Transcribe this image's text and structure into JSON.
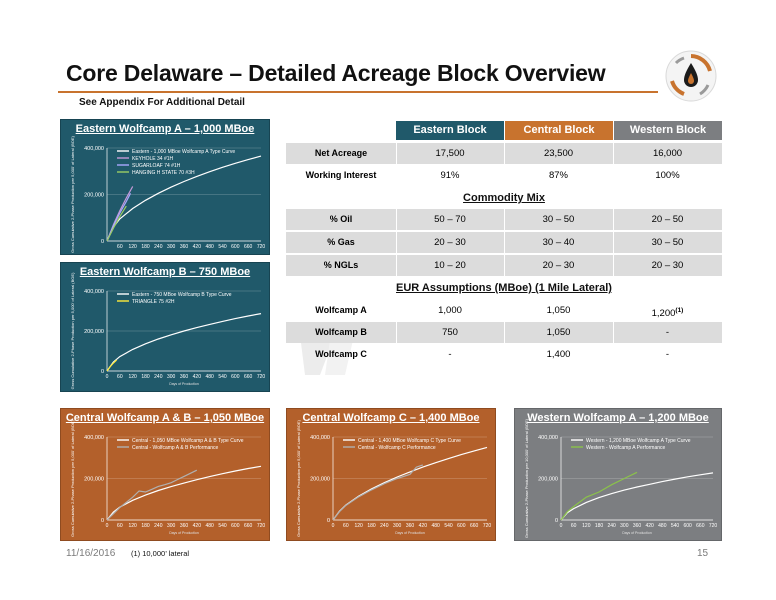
{
  "header": {
    "title": "Core Delaware – Detailed Acreage Block Overview",
    "subtitle": "See Appendix For Additional Detail"
  },
  "footer": {
    "date": "11/16/2016",
    "footnote": "(1) 10,000’ lateral",
    "page": "15"
  },
  "colors": {
    "accent": "#c8732e",
    "blue_panel": "#20596a",
    "orange_panel": "#b3602b",
    "grey_panel": "#7c7e81"
  },
  "table": {
    "headers": [
      {
        "label": "Eastern Block",
        "color": "#20596a"
      },
      {
        "label": "Central Block",
        "color": "#c8732e"
      },
      {
        "label": "Western Block",
        "color": "#7c7e81"
      }
    ],
    "rows": [
      {
        "label": "Net Acreage",
        "values": [
          "17,500",
          "23,500",
          "16,000"
        ]
      },
      {
        "label": "Working Interest",
        "values": [
          "91%",
          "87%",
          "100%"
        ]
      }
    ],
    "commodity_title": "Commodity Mix",
    "commodity_rows": [
      {
        "label": "% Oil",
        "values": [
          "50 – 70",
          "30 – 50",
          "20 – 50"
        ]
      },
      {
        "label": "% Gas",
        "values": [
          "20 – 30",
          "30 – 40",
          "30 – 50"
        ]
      },
      {
        "label": "% NGLs",
        "values": [
          "10 – 20",
          "20 – 30",
          "20 – 30"
        ]
      }
    ],
    "eur_title": "EUR Assumptions (MBoe) (1 Mile Lateral)",
    "eur_rows": [
      {
        "label": "Wolfcamp A",
        "values": [
          "1,000",
          "1,050",
          "1,200"
        ],
        "notes": [
          "",
          "",
          "(1)"
        ]
      },
      {
        "label": "Wolfcamp B",
        "values": [
          "750",
          "1,050",
          "-"
        ],
        "notes": [
          "",
          "",
          ""
        ]
      },
      {
        "label": "Wolfcamp C",
        "values": [
          "-",
          "1,400",
          "-"
        ],
        "notes": [
          "",
          "",
          ""
        ]
      }
    ]
  },
  "chart_data": [
    {
      "type": "line",
      "title": "Eastern Wolfcamp A – 1,000 MBoe",
      "ylabel": "Gross Cumulative 2-Phase Production per 5,000' of Lateral (BOE)",
      "xlabel": "",
      "xlim": [
        0,
        720
      ],
      "ylim": [
        0,
        400000
      ],
      "xticks": [
        "60",
        "120",
        "180",
        "240",
        "300",
        "360",
        "420",
        "480",
        "540",
        "600",
        "660",
        "720"
      ],
      "yticks": [
        "0",
        "200,000",
        "400,000"
      ],
      "series": [
        {
          "name": "Eastern - 1,000 MBoe Wolfcamp A Type Curve",
          "color": "#ffffff",
          "x": [
            0,
            30,
            60,
            120,
            180,
            240,
            300,
            360,
            420,
            480,
            540,
            600,
            660,
            720
          ],
          "y": [
            0,
            60000,
            95000,
            140000,
            175000,
            205000,
            232000,
            256000,
            278000,
            298000,
            317000,
            334000,
            350000,
            365000
          ]
        },
        {
          "name": "KEYHOLE 34 #1H",
          "color": "#c49ad8",
          "x": [
            0,
            30,
            60,
            90,
            120
          ],
          "y": [
            0,
            70000,
            130000,
            185000,
            235000
          ]
        },
        {
          "name": "SUGARLOAF 74 #1H",
          "color": "#a9a9ff",
          "x": [
            0,
            30,
            60,
            90,
            110
          ],
          "y": [
            0,
            65000,
            120000,
            170000,
            205000
          ]
        },
        {
          "name": "HANGING H STATE 70 #3H",
          "color": "#9ccc65",
          "x": [
            0,
            30,
            60,
            90
          ],
          "y": [
            0,
            55000,
            105000,
            150000
          ]
        }
      ]
    },
    {
      "type": "line",
      "title": "Eastern Wolfcamp B – 750 MBoe",
      "ylabel": "Gross Cumulative 2-Phase Production per 5,000' of Lateral (BOE)",
      "xlabel": "Days of Production",
      "xlim": [
        0,
        720
      ],
      "ylim": [
        0,
        400000
      ],
      "xticks": [
        "0",
        "60",
        "120",
        "180",
        "240",
        "300",
        "360",
        "420",
        "480",
        "540",
        "600",
        "660",
        "720"
      ],
      "yticks": [
        "0",
        "200,000",
        "400,000"
      ],
      "series": [
        {
          "name": "Eastern - 750 MBoe Wolfcamp B Type Curve",
          "color": "#ffffff",
          "x": [
            0,
            30,
            60,
            120,
            180,
            240,
            300,
            360,
            420,
            480,
            540,
            600,
            660,
            720
          ],
          "y": [
            0,
            45000,
            72000,
            108000,
            136000,
            160000,
            181000,
            200000,
            217000,
            233000,
            248000,
            262000,
            275000,
            287000
          ]
        },
        {
          "name": "TRIANGLE 75 #2H",
          "color": "#ffeb3b",
          "x": [
            0,
            15,
            30,
            45
          ],
          "y": [
            0,
            22000,
            40000,
            55000
          ]
        }
      ]
    },
    {
      "type": "line",
      "title": "Central Wolfcamp A & B – 1,050 MBoe",
      "ylabel": "Gross Cumulative 2-Phase Production per 5,000' of Lateral (BOE)",
      "xlabel": "Days of Production",
      "xlim": [
        0,
        720
      ],
      "ylim": [
        0,
        400000
      ],
      "xticks": [
        "0",
        "60",
        "120",
        "180",
        "240",
        "300",
        "360",
        "420",
        "480",
        "540",
        "600",
        "660",
        "720"
      ],
      "yticks": [
        "0",
        "200,000",
        "400,000"
      ],
      "series": [
        {
          "name": "Central - 1,050 MBoe Wolfcamp A & B Type Curve",
          "color": "#ffffff",
          "x": [
            0,
            30,
            60,
            120,
            180,
            240,
            300,
            360,
            420,
            480,
            540,
            600,
            660,
            720
          ],
          "y": [
            0,
            38000,
            62000,
            95000,
            120000,
            142000,
            161000,
            178000,
            194000,
            209000,
            223000,
            236000,
            248000,
            259000
          ]
        },
        {
          "name": "Central - Wolfcamp A & B Performance",
          "color": "#b0b0b0",
          "x": [
            0,
            30,
            60,
            90,
            120,
            150,
            180,
            210,
            240,
            270,
            300,
            330,
            360,
            390,
            420
          ],
          "y": [
            0,
            30000,
            60000,
            85000,
            110000,
            140000,
            135000,
            148000,
            162000,
            170000,
            180000,
            195000,
            210000,
            225000,
            240000
          ]
        }
      ]
    },
    {
      "type": "line",
      "title": "Central Wolfcamp C – 1,400 MBoe",
      "ylabel": "Gross Cumulative 2-Phase Production per 5,000' of Lateral (BOE)",
      "xlabel": "Days of Production",
      "xlim": [
        0,
        720
      ],
      "ylim": [
        0,
        400000
      ],
      "xticks": [
        "0",
        "60",
        "120",
        "180",
        "240",
        "300",
        "360",
        "420",
        "480",
        "540",
        "600",
        "660",
        "720"
      ],
      "yticks": [
        "0",
        "200,000",
        "400,000"
      ],
      "series": [
        {
          "name": "Central - 1,400 MBoe Wolfcamp C Type Curve",
          "color": "#ffffff",
          "x": [
            0,
            30,
            60,
            120,
            180,
            240,
            300,
            360,
            420,
            480,
            540,
            600,
            660,
            720
          ],
          "y": [
            0,
            42000,
            72000,
            115000,
            150000,
            180000,
            207000,
            232000,
            255000,
            276000,
            296000,
            315000,
            333000,
            350000
          ]
        },
        {
          "name": "Central - Wolfcamp C Performance",
          "color": "#b0b0b0",
          "x": [
            0,
            30,
            60,
            120,
            180,
            240,
            300,
            360,
            390,
            420
          ],
          "y": [
            0,
            40000,
            70000,
            112000,
            145000,
            175000,
            200000,
            220000,
            255000,
            265000
          ]
        }
      ]
    },
    {
      "type": "line",
      "title": "Western Wolfcamp A – 1,200 MBoe",
      "ylabel": "Gross Cumulative 2-Phase Production per 10,000' of Lateral (BOE)",
      "xlabel": "Days of Production",
      "xlim": [
        0,
        720
      ],
      "ylim": [
        0,
        400000
      ],
      "xticks": [
        "0",
        "60",
        "120",
        "180",
        "240",
        "300",
        "360",
        "420",
        "480",
        "540",
        "600",
        "660",
        "720"
      ],
      "yticks": [
        "0",
        "200,000",
        "400,000"
      ],
      "series": [
        {
          "name": "Western - 1,200 MBoe Wolfcamp A Type Curve",
          "color": "#ffffff",
          "x": [
            0,
            30,
            60,
            120,
            180,
            240,
            300,
            360,
            420,
            480,
            540,
            600,
            660,
            720
          ],
          "y": [
            0,
            35000,
            55000,
            85000,
            108000,
            127000,
            144000,
            159000,
            172000,
            185000,
            197000,
            208000,
            218000,
            227000
          ]
        },
        {
          "name": "Western - Wolfcamp A Performance",
          "color": "#8bc34a",
          "x": [
            0,
            30,
            60,
            120,
            180,
            240,
            300,
            360
          ],
          "y": [
            0,
            40000,
            65000,
            110000,
            135000,
            170000,
            200000,
            230000
          ]
        }
      ]
    }
  ]
}
